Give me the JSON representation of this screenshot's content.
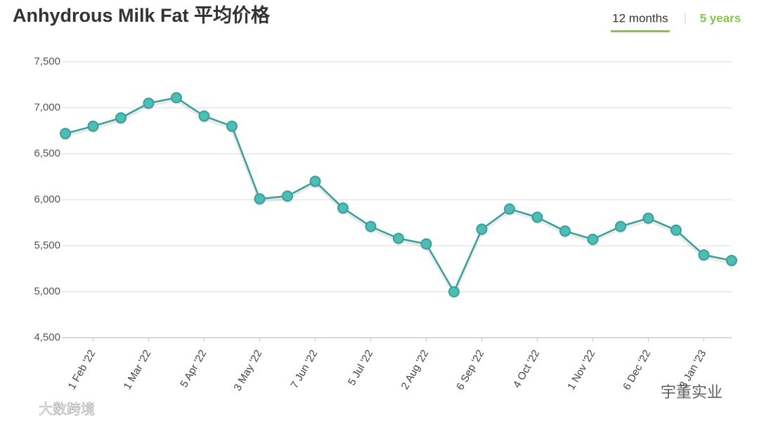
{
  "chart_data": {
    "type": "line",
    "title": "Anhydrous Milk Fat 平均价格",
    "categories": [
      null,
      "1 Feb '22",
      null,
      "1 Mar '22",
      null,
      "5 Apr '22",
      null,
      "3 May '22",
      null,
      "7 Jun '22",
      null,
      "5 Jul '22",
      null,
      "2 Aug '22",
      null,
      "6 Sep '22",
      null,
      "4 Oct '22",
      null,
      "1 Nov '22",
      null,
      "6 Dec '22",
      null,
      "3 Jan '23",
      null
    ],
    "series": [
      {
        "name": "Anhydrous Milk Fat",
        "color": "#3a9f9a",
        "values": [
          6720,
          6800,
          6890,
          7050,
          7110,
          6910,
          6800,
          6010,
          6040,
          6200,
          5910,
          5710,
          5580,
          5520,
          5000,
          5680,
          5900,
          5810,
          5660,
          5570,
          5710,
          5800,
          5670,
          5400,
          5340
        ]
      }
    ],
    "ylim": [
      4500,
      7500
    ],
    "yticks": [
      {
        "value": 4500,
        "label": "4,500"
      },
      {
        "value": 5000,
        "label": "5,000"
      },
      {
        "value": 5500,
        "label": "5,500"
      },
      {
        "value": 6000,
        "label": "6,000"
      },
      {
        "value": 6500,
        "label": "6,500"
      },
      {
        "value": 7000,
        "label": "7,000"
      },
      {
        "value": 7500,
        "label": "7,500"
      }
    ],
    "grid": true
  },
  "tabs": [
    "12 months",
    "5 years"
  ],
  "watermarks": [
    "大数跨境",
    "宇董实业"
  ]
}
